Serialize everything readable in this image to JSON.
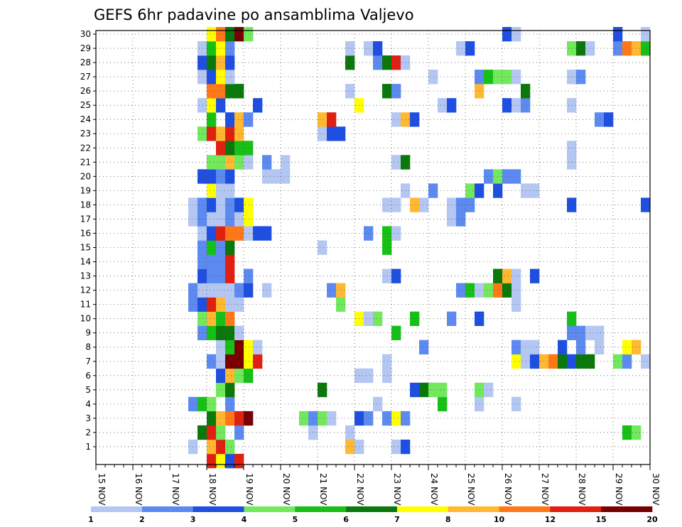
{
  "chart_data": {
    "type": "heatmap",
    "title": "GEFS 6hr padavine po ansamblima Valjevo",
    "xlabel": "",
    "ylabel": "",
    "x_tick_labels": [
      "15 NOV",
      "16 NOV",
      "17 NOV",
      "18 NOV",
      "19 NOV",
      "20 NOV",
      "21 NOV",
      "22 NOV",
      "23 NOV",
      "24 NOV",
      "25 NOV",
      "26 NOV",
      "27 NOV",
      "28 NOV",
      "29 NOV",
      "30 NOV"
    ],
    "x_range": [
      0,
      60
    ],
    "steps_per_day": 4,
    "y_range": [
      0,
      30
    ],
    "y_ticks": [
      1,
      2,
      3,
      4,
      5,
      6,
      7,
      8,
      9,
      10,
      11,
      12,
      13,
      14,
      15,
      16,
      17,
      18,
      19,
      20,
      21,
      22,
      23,
      24,
      25,
      26,
      27,
      28,
      29,
      30
    ],
    "grid": true,
    "legend": {
      "placement": "bottom",
      "labels": [
        "1",
        "2",
        "3",
        "4",
        "5",
        "6",
        "7",
        "8",
        "10",
        "12",
        "15",
        "20"
      ],
      "colors": [
        "#b4c6f2",
        "#5c8af0",
        "#1f4fe0",
        "#72e85c",
        "#16c016",
        "#0a780a",
        "#ffff00",
        "#ffb830",
        "#ff7818",
        "#e02010",
        "#780000"
      ]
    },
    "cells_note": "each row = ensemble member, each entry [timestep index (6h steps from 15 NOV 00z), color class 0-10]",
    "members": {
      "30": [
        [
          12,
          6
        ],
        [
          13,
          8
        ],
        [
          14,
          5
        ],
        [
          15,
          10
        ],
        [
          16,
          3
        ],
        [
          44,
          2
        ],
        [
          45,
          0
        ],
        [
          56,
          2
        ],
        [
          59,
          0
        ]
      ],
      "29": [
        [
          11,
          0
        ],
        [
          12,
          4
        ],
        [
          13,
          6
        ],
        [
          14,
          1
        ],
        [
          27,
          0
        ],
        [
          29,
          0
        ],
        [
          30,
          2
        ],
        [
          39,
          0
        ],
        [
          40,
          2
        ],
        [
          51,
          3
        ],
        [
          52,
          5
        ],
        [
          53,
          0
        ],
        [
          56,
          1
        ],
        [
          57,
          8
        ],
        [
          58,
          7
        ],
        [
          59,
          4
        ]
      ],
      "28": [
        [
          11,
          2
        ],
        [
          12,
          5
        ],
        [
          13,
          7
        ],
        [
          14,
          2
        ],
        [
          27,
          5
        ],
        [
          30,
          1
        ],
        [
          31,
          5
        ],
        [
          32,
          9
        ],
        [
          33,
          0
        ]
      ],
      "27": [
        [
          11,
          0
        ],
        [
          12,
          2
        ],
        [
          13,
          6
        ],
        [
          14,
          0
        ],
        [
          36,
          0
        ],
        [
          41,
          1
        ],
        [
          42,
          4
        ],
        [
          43,
          3
        ],
        [
          44,
          3
        ],
        [
          45,
          0
        ],
        [
          51,
          0
        ],
        [
          52,
          1
        ]
      ],
      "26": [
        [
          12,
          8
        ],
        [
          13,
          8
        ],
        [
          14,
          5
        ],
        [
          15,
          5
        ],
        [
          27,
          0
        ],
        [
          31,
          5
        ],
        [
          32,
          1
        ],
        [
          41,
          7
        ],
        [
          46,
          5
        ]
      ],
      "25": [
        [
          11,
          0
        ],
        [
          12,
          6
        ],
        [
          13,
          2
        ],
        [
          17,
          2
        ],
        [
          28,
          6
        ],
        [
          37,
          0
        ],
        [
          38,
          2
        ],
        [
          44,
          2
        ],
        [
          45,
          0
        ],
        [
          46,
          1
        ],
        [
          51,
          0
        ]
      ],
      "24": [
        [
          12,
          4
        ],
        [
          14,
          2
        ],
        [
          15,
          7
        ],
        [
          16,
          1
        ],
        [
          24,
          7
        ],
        [
          25,
          9
        ],
        [
          32,
          0
        ],
        [
          33,
          7
        ],
        [
          34,
          2
        ],
        [
          54,
          1
        ],
        [
          55,
          2
        ]
      ],
      "23": [
        [
          11,
          3
        ],
        [
          12,
          9
        ],
        [
          13,
          7
        ],
        [
          14,
          9
        ],
        [
          15,
          7
        ],
        [
          24,
          0
        ],
        [
          25,
          2
        ],
        [
          26,
          2
        ]
      ],
      "22": [
        [
          13,
          9
        ],
        [
          14,
          5
        ],
        [
          15,
          4
        ],
        [
          16,
          4
        ],
        [
          51,
          0
        ]
      ],
      "21": [
        [
          12,
          3
        ],
        [
          13,
          3
        ],
        [
          14,
          7
        ],
        [
          15,
          3
        ],
        [
          16,
          0
        ],
        [
          18,
          1
        ],
        [
          20,
          0
        ],
        [
          32,
          0
        ],
        [
          33,
          5
        ],
        [
          51,
          0
        ]
      ],
      "20": [
        [
          11,
          2
        ],
        [
          12,
          2
        ],
        [
          13,
          1
        ],
        [
          14,
          2
        ],
        [
          18,
          0
        ],
        [
          19,
          0
        ],
        [
          20,
          0
        ],
        [
          42,
          1
        ],
        [
          43,
          3
        ],
        [
          44,
          1
        ],
        [
          45,
          1
        ]
      ],
      "19": [
        [
          12,
          6
        ],
        [
          13,
          0
        ],
        [
          14,
          0
        ],
        [
          33,
          0
        ],
        [
          36,
          1
        ],
        [
          40,
          3
        ],
        [
          41,
          2
        ],
        [
          43,
          2
        ],
        [
          46,
          0
        ],
        [
          47,
          0
        ]
      ],
      "18": [
        [
          10,
          0
        ],
        [
          11,
          1
        ],
        [
          12,
          2
        ],
        [
          13,
          0
        ],
        [
          14,
          1
        ],
        [
          15,
          2
        ],
        [
          16,
          6
        ],
        [
          31,
          0
        ],
        [
          32,
          0
        ],
        [
          34,
          7
        ],
        [
          35,
          0
        ],
        [
          38,
          0
        ],
        [
          39,
          1
        ],
        [
          40,
          1
        ],
        [
          51,
          2
        ],
        [
          59,
          2
        ]
      ],
      "17": [
        [
          10,
          0
        ],
        [
          11,
          1
        ],
        [
          12,
          0
        ],
        [
          13,
          0
        ],
        [
          14,
          1
        ],
        [
          15,
          0
        ],
        [
          16,
          6
        ],
        [
          38,
          0
        ],
        [
          39,
          1
        ]
      ],
      "16": [
        [
          11,
          0
        ],
        [
          12,
          2
        ],
        [
          13,
          9
        ],
        [
          14,
          8
        ],
        [
          15,
          8
        ],
        [
          16,
          0
        ],
        [
          17,
          2
        ],
        [
          18,
          2
        ],
        [
          29,
          1
        ],
        [
          31,
          4
        ],
        [
          32,
          0
        ]
      ],
      "15": [
        [
          11,
          1
        ],
        [
          12,
          4
        ],
        [
          13,
          1
        ],
        [
          14,
          5
        ],
        [
          24,
          0
        ],
        [
          31,
          4
        ]
      ],
      "14": [
        [
          11,
          1
        ],
        [
          12,
          1
        ],
        [
          13,
          1
        ],
        [
          14,
          9
        ]
      ],
      "13": [
        [
          11,
          2
        ],
        [
          12,
          1
        ],
        [
          13,
          1
        ],
        [
          14,
          9
        ],
        [
          16,
          1
        ],
        [
          31,
          0
        ],
        [
          32,
          2
        ],
        [
          43,
          5
        ],
        [
          44,
          7
        ],
        [
          45,
          0
        ],
        [
          47,
          2
        ]
      ],
      "12": [
        [
          10,
          1
        ],
        [
          11,
          0
        ],
        [
          12,
          0
        ],
        [
          13,
          0
        ],
        [
          14,
          0
        ],
        [
          15,
          1
        ],
        [
          16,
          2
        ],
        [
          18,
          0
        ],
        [
          25,
          1
        ],
        [
          26,
          7
        ],
        [
          39,
          1
        ],
        [
          40,
          4
        ],
        [
          41,
          0
        ],
        [
          42,
          3
        ],
        [
          43,
          8
        ],
        [
          44,
          5
        ],
        [
          45,
          0
        ]
      ],
      "11": [
        [
          10,
          1
        ],
        [
          11,
          2
        ],
        [
          12,
          9
        ],
        [
          13,
          7
        ],
        [
          14,
          0
        ],
        [
          15,
          0
        ],
        [
          26,
          3
        ],
        [
          45,
          0
        ]
      ],
      "10": [
        [
          11,
          3
        ],
        [
          12,
          7
        ],
        [
          13,
          4
        ],
        [
          14,
          8
        ],
        [
          28,
          6
        ],
        [
          29,
          0
        ],
        [
          30,
          3
        ],
        [
          34,
          4
        ],
        [
          38,
          1
        ],
        [
          41,
          2
        ],
        [
          51,
          4
        ]
      ],
      "9": [
        [
          11,
          1
        ],
        [
          12,
          4
        ],
        [
          13,
          5
        ],
        [
          14,
          5
        ],
        [
          15,
          0
        ],
        [
          32,
          4
        ],
        [
          51,
          1
        ],
        [
          52,
          1
        ],
        [
          53,
          0
        ],
        [
          54,
          0
        ]
      ],
      "8": [
        [
          13,
          0
        ],
        [
          14,
          4
        ],
        [
          15,
          10
        ],
        [
          16,
          6
        ],
        [
          17,
          0
        ],
        [
          35,
          1
        ],
        [
          45,
          1
        ],
        [
          46,
          0
        ],
        [
          47,
          0
        ],
        [
          50,
          2
        ],
        [
          52,
          1
        ],
        [
          54,
          0
        ],
        [
          57,
          6
        ],
        [
          58,
          7
        ]
      ],
      "7": [
        [
          12,
          1
        ],
        [
          13,
          0
        ],
        [
          14,
          10
        ],
        [
          15,
          10
        ],
        [
          16,
          6
        ],
        [
          17,
          9
        ],
        [
          31,
          0
        ],
        [
          45,
          6
        ],
        [
          46,
          0
        ],
        [
          47,
          2
        ],
        [
          48,
          7
        ],
        [
          49,
          8
        ],
        [
          50,
          5
        ],
        [
          51,
          2
        ],
        [
          52,
          5
        ],
        [
          53,
          5
        ],
        [
          56,
          3
        ],
        [
          57,
          1
        ],
        [
          59,
          0
        ]
      ],
      "6": [
        [
          13,
          2
        ],
        [
          14,
          7
        ],
        [
          15,
          3
        ],
        [
          16,
          4
        ],
        [
          28,
          0
        ],
        [
          29,
          0
        ],
        [
          31,
          0
        ]
      ],
      "5": [
        [
          13,
          3
        ],
        [
          14,
          5
        ],
        [
          24,
          5
        ],
        [
          34,
          2
        ],
        [
          35,
          5
        ],
        [
          36,
          3
        ],
        [
          37,
          3
        ],
        [
          41,
          3
        ],
        [
          42,
          0
        ]
      ],
      "4": [
        [
          10,
          1
        ],
        [
          11,
          4
        ],
        [
          12,
          3
        ],
        [
          14,
          1
        ],
        [
          30,
          0
        ],
        [
          37,
          4
        ],
        [
          41,
          0
        ],
        [
          45,
          0
        ]
      ],
      "3": [
        [
          12,
          5
        ],
        [
          13,
          7
        ],
        [
          14,
          8
        ],
        [
          15,
          9
        ],
        [
          16,
          10
        ],
        [
          22,
          3
        ],
        [
          23,
          1
        ],
        [
          24,
          3
        ],
        [
          25,
          0
        ],
        [
          28,
          2
        ],
        [
          29,
          1
        ],
        [
          31,
          1
        ],
        [
          32,
          6
        ],
        [
          33,
          1
        ]
      ],
      "2": [
        [
          11,
          5
        ],
        [
          12,
          9
        ],
        [
          13,
          3
        ],
        [
          15,
          1
        ],
        [
          23,
          0
        ],
        [
          27,
          0
        ],
        [
          57,
          4
        ],
        [
          58,
          3
        ]
      ],
      "1": [
        [
          10,
          0
        ],
        [
          12,
          7
        ],
        [
          13,
          9
        ],
        [
          14,
          3
        ],
        [
          27,
          7
        ],
        [
          28,
          0
        ],
        [
          32,
          0
        ],
        [
          33,
          2
        ]
      ],
      "0": [
        [
          12,
          9
        ],
        [
          13,
          6
        ],
        [
          14,
          2
        ],
        [
          15,
          9
        ]
      ]
    }
  }
}
